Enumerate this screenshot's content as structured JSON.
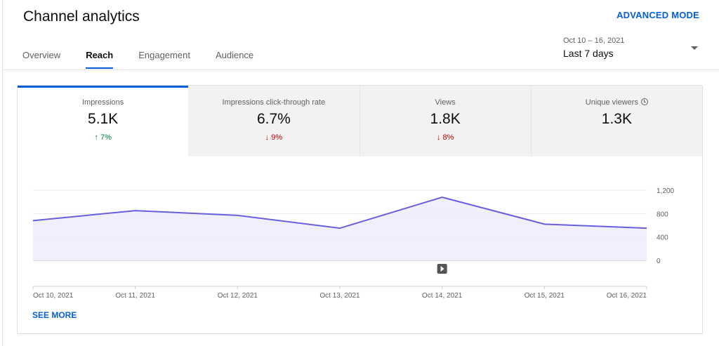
{
  "header": {
    "title": "Channel analytics",
    "advanced_mode": "ADVANCED MODE"
  },
  "tabs": [
    {
      "label": "Overview"
    },
    {
      "label": "Reach"
    },
    {
      "label": "Engagement"
    },
    {
      "label": "Audience"
    }
  ],
  "date_picker": {
    "range": "Oct 10 – 16, 2021",
    "preset": "Last 7 days"
  },
  "metrics": [
    {
      "label": "Impressions",
      "value": "5.1K",
      "delta": "↑ 7%",
      "trend": "up"
    },
    {
      "label": "Impressions click-through rate",
      "value": "6.7%",
      "delta": "↓ 9%",
      "trend": "down"
    },
    {
      "label": "Views",
      "value": "1.8K",
      "delta": "↓ 8%",
      "trend": "down"
    },
    {
      "label": "Unique viewers",
      "value": "1.3K",
      "icon": "clock-icon"
    }
  ],
  "colors": {
    "accent": "#065fd4",
    "line": "#6a5ee0",
    "fill": "#ecebfa",
    "up": "#0b8043",
    "down": "#cc0000"
  },
  "chart_data": {
    "type": "area",
    "x": [
      "Oct 10, 2021",
      "Oct 11, 2021",
      "Oct 12, 2021",
      "Oct 13, 2021",
      "Oct 14, 2021",
      "Oct 15, 2021",
      "Oct 16, 2021"
    ],
    "values": [
      680,
      850,
      770,
      550,
      1080,
      620,
      550
    ],
    "yticks": [
      "1,200",
      "800",
      "400",
      "0"
    ],
    "ylim": [
      0,
      1200
    ],
    "grid": true
  },
  "see_more": "SEE MORE"
}
